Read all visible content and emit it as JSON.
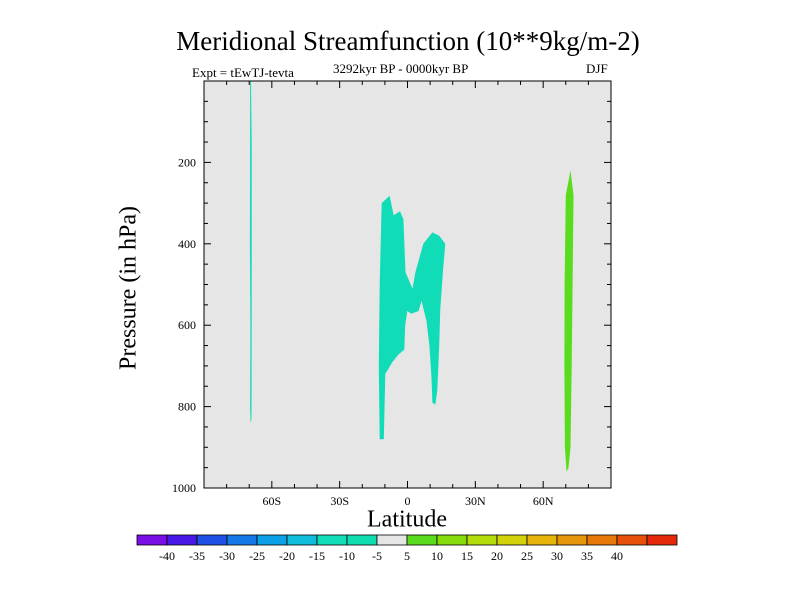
{
  "chart_data": {
    "type": "contour",
    "title": "Meridional Streamfunction (10**9kg/m-2)",
    "experiment_label": "Expt = tEwTJ-tevta",
    "period_label": "3292kyr BP - 0000kyr BP",
    "season_label": "DJF",
    "xlabel": "Latitude",
    "ylabel": "Pressure (in hPa)",
    "xlim": [
      -90,
      90
    ],
    "ylim": [
      1000,
      0
    ],
    "x_ticks": [
      {
        "value": -60,
        "label": "60S"
      },
      {
        "value": -30,
        "label": "30S"
      },
      {
        "value": 0,
        "label": "0"
      },
      {
        "value": 30,
        "label": "30N"
      },
      {
        "value": 60,
        "label": "60N"
      }
    ],
    "y_ticks": [
      {
        "value": 200,
        "label": "200"
      },
      {
        "value": 400,
        "label": "400"
      },
      {
        "value": 600,
        "label": "600"
      },
      {
        "value": 800,
        "label": "800"
      },
      {
        "value": 1000,
        "label": "1000"
      }
    ],
    "background_color": "#e6e6e6",
    "regions": [
      {
        "level_range": [
          -10,
          -5
        ],
        "color": "#10dcb8",
        "points": [
          [
            -69.6,
            0
          ],
          [
            -69.2,
            0
          ],
          [
            -68.9,
            150
          ],
          [
            -68.9,
            400
          ],
          [
            -68.9,
            600
          ],
          [
            -69.0,
            830
          ],
          [
            -69.4,
            840
          ],
          [
            -69.6,
            800
          ],
          [
            -69.5,
            600
          ],
          [
            -69.7,
            400
          ],
          [
            -69.6,
            150
          ]
        ]
      },
      {
        "level_range": [
          -10,
          -5
        ],
        "color": "#10dcb8",
        "points": [
          [
            -11.4,
            300
          ],
          [
            -7.9,
            282
          ],
          [
            -6.1,
            330
          ],
          [
            -3.3,
            320
          ],
          [
            -1.8,
            340
          ],
          [
            -0.9,
            470
          ],
          [
            2.2,
            510
          ],
          [
            3.5,
            470
          ],
          [
            7.0,
            400
          ],
          [
            11.0,
            372
          ],
          [
            14.0,
            380
          ],
          [
            16.7,
            400
          ],
          [
            15.8,
            460
          ],
          [
            14.5,
            560
          ],
          [
            14.0,
            650
          ],
          [
            13.2,
            760
          ],
          [
            12.3,
            795
          ],
          [
            11.0,
            790
          ],
          [
            10.6,
            730
          ],
          [
            9.7,
            650
          ],
          [
            8.4,
            590
          ],
          [
            6.2,
            540
          ],
          [
            4.9,
            565
          ],
          [
            1.7,
            572
          ],
          [
            -0.1,
            565
          ],
          [
            -1.0,
            600
          ],
          [
            -1.4,
            660
          ],
          [
            -4.0,
            672
          ],
          [
            -6.6,
            690
          ],
          [
            -9.8,
            720
          ],
          [
            -10.5,
            880
          ],
          [
            -12.3,
            880
          ],
          [
            -12.7,
            700
          ],
          [
            -12.3,
            500
          ]
        ]
      },
      {
        "level_range": [
          5,
          10
        ],
        "color": "#5adc1e",
        "points": [
          [
            70.0,
            280
          ],
          [
            72.1,
            220
          ],
          [
            73.4,
            280
          ],
          [
            73.0,
            500
          ],
          [
            72.6,
            700
          ],
          [
            72.1,
            900
          ],
          [
            71.2,
            950
          ],
          [
            70.3,
            960
          ],
          [
            69.6,
            900
          ],
          [
            69.4,
            700
          ],
          [
            69.5,
            500
          ]
        ]
      }
    ],
    "colorbar": {
      "colors": [
        "#7a0ee6",
        "#4a18e6",
        "#1e50e6",
        "#1478e6",
        "#0ea0e6",
        "#10bcdc",
        "#10dcb8",
        "#10dcb2",
        "#e6e6e6",
        "#5adc1e",
        "#86dc0a",
        "#b4dc0a",
        "#d2d20a",
        "#e6b40a",
        "#e6960a",
        "#e6780a",
        "#e6500a",
        "#e6280a"
      ],
      "labels": [
        "-40",
        "-35",
        "-30",
        "-25",
        "-20",
        "-15",
        "-10",
        "-5",
        "5",
        "10",
        "15",
        "20",
        "25",
        "30",
        "35",
        "40"
      ]
    }
  }
}
